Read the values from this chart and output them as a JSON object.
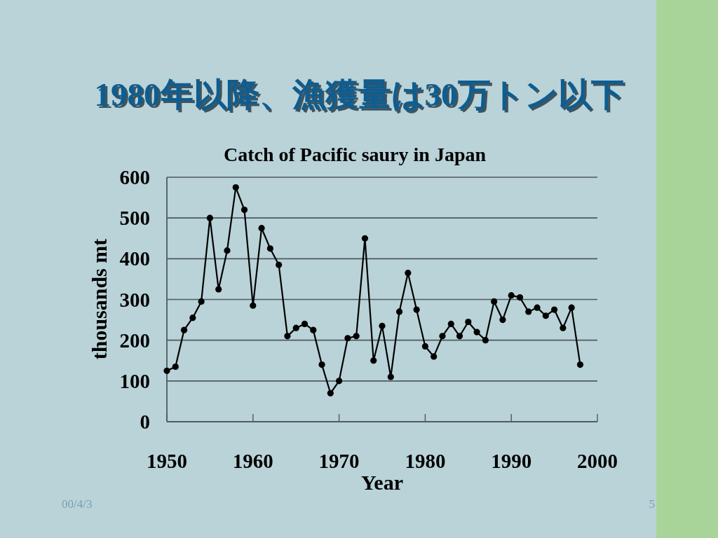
{
  "chart_data": {
    "type": "line",
    "title": "1980年以降、漁獲量は30万トン以下",
    "subtitle": "Catch of Pacific saury in Japan",
    "xlabel": "Year",
    "ylabel": "thousands mt",
    "x": [
      1950,
      1951,
      1952,
      1953,
      1954,
      1955,
      1956,
      1957,
      1958,
      1959,
      1960,
      1961,
      1962,
      1963,
      1964,
      1965,
      1966,
      1967,
      1968,
      1969,
      1970,
      1971,
      1972,
      1973,
      1974,
      1975,
      1976,
      1977,
      1978,
      1979,
      1980,
      1981,
      1982,
      1983,
      1984,
      1985,
      1986,
      1987,
      1988,
      1989,
      1990,
      1991,
      1992,
      1993,
      1994,
      1995,
      1996,
      1997,
      1998
    ],
    "series": [
      {
        "color": "#000000",
        "values": [
          125,
          135,
          225,
          255,
          295,
          500,
          325,
          420,
          575,
          520,
          285,
          475,
          425,
          385,
          210,
          230,
          240,
          225,
          140,
          70,
          100,
          205,
          210,
          450,
          150,
          235,
          110,
          270,
          365,
          275,
          185,
          160,
          210,
          240,
          210,
          245,
          220,
          200,
          295,
          250,
          310,
          305,
          270,
          280,
          260,
          275,
          230,
          280,
          140
        ]
      }
    ],
    "xlim": [
      1950,
      2000
    ],
    "xticks": [
      1950,
      1960,
      1970,
      1980,
      1990,
      2000
    ],
    "ylim": [
      0,
      600
    ],
    "yticks": [
      0,
      100,
      200,
      300,
      400,
      500,
      600
    ],
    "grid": "y",
    "marker": "circle",
    "line_style": "solid",
    "annotations": [
      "00/4/3",
      "5"
    ]
  }
}
